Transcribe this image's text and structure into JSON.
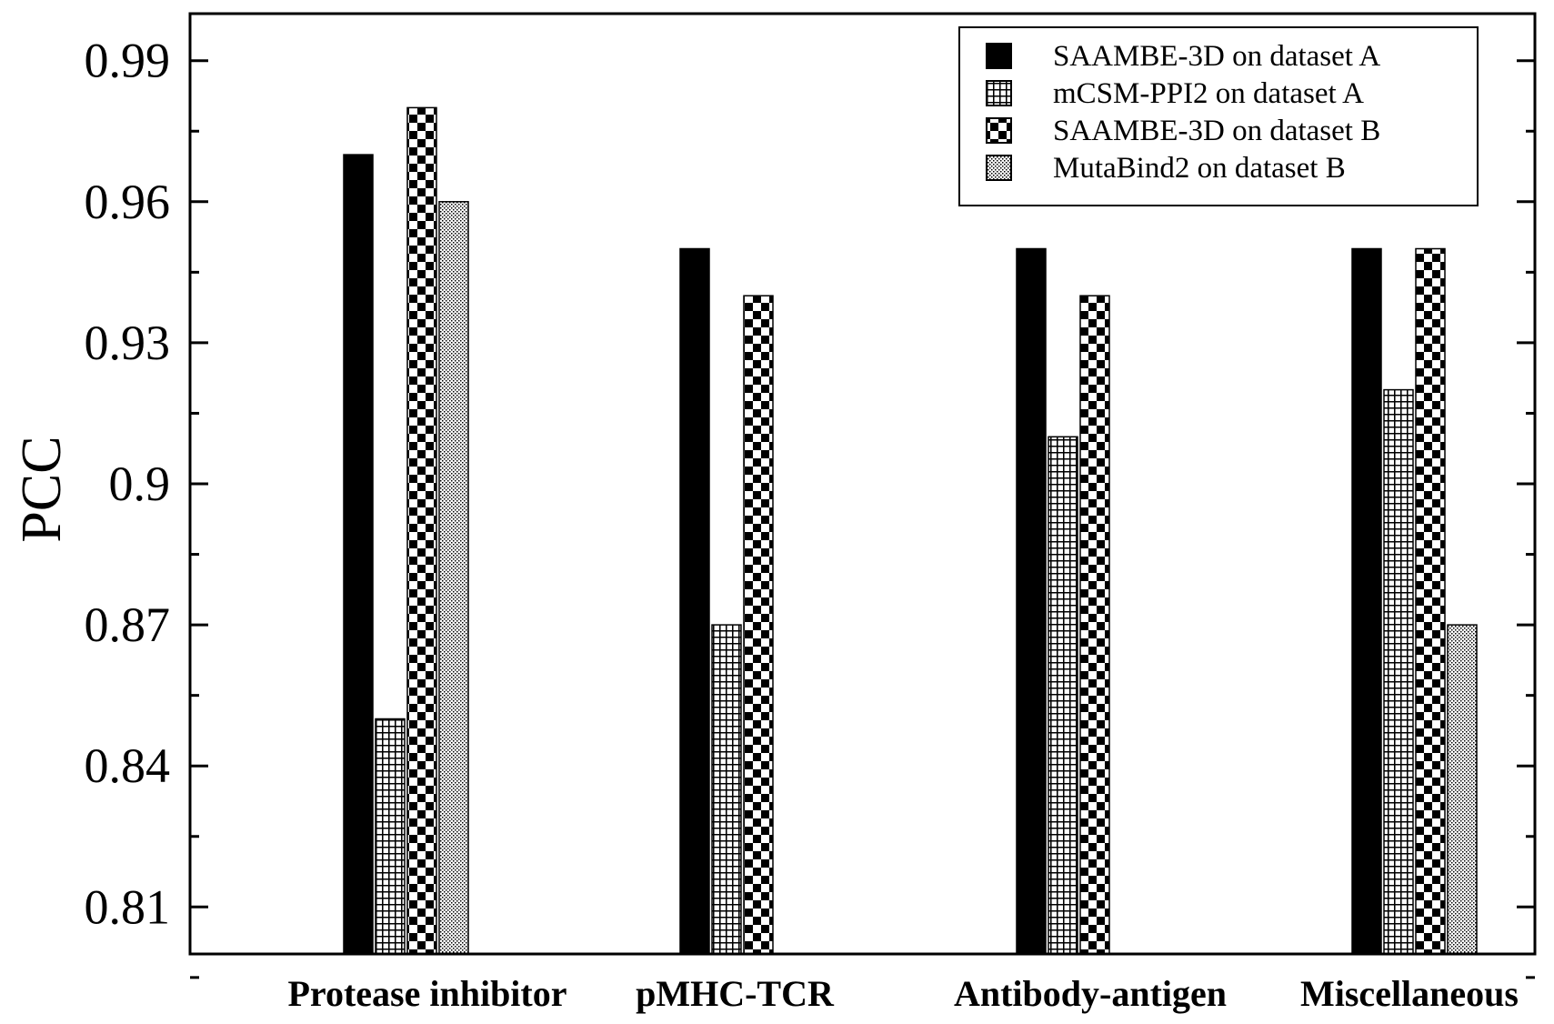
{
  "chart_data": {
    "type": "bar",
    "title": "",
    "xlabel": "",
    "ylabel": "PCC",
    "ylim": [
      0.8,
      1.0
    ],
    "yticks": [
      0.81,
      0.84,
      0.87,
      0.9,
      0.93,
      0.96,
      0.99
    ],
    "ytick_labels": [
      "0.81",
      "0.84",
      "0.87",
      "0.9",
      "0.93",
      "0.96",
      "0.99"
    ],
    "categories": [
      "Protease inhibitor",
      "pMHC-TCR",
      "Antibody-antigen",
      "Miscellaneous"
    ],
    "legend_position": "top-right",
    "series": [
      {
        "name": "SAAMBE-3D on dataset A",
        "pattern": "solid",
        "values": [
          0.97,
          0.95,
          0.95,
          0.95
        ]
      },
      {
        "name": "mCSM-PPI2 on dataset A",
        "pattern": "grid",
        "values": [
          0.85,
          0.87,
          0.91,
          0.92
        ]
      },
      {
        "name": "SAAMBE-3D on dataset B",
        "pattern": "checker",
        "values": [
          0.98,
          0.94,
          0.94,
          0.95
        ]
      },
      {
        "name": "MutaBind2 on dataset B",
        "pattern": "dots",
        "values": [
          0.96,
          null,
          null,
          0.87
        ]
      }
    ]
  }
}
